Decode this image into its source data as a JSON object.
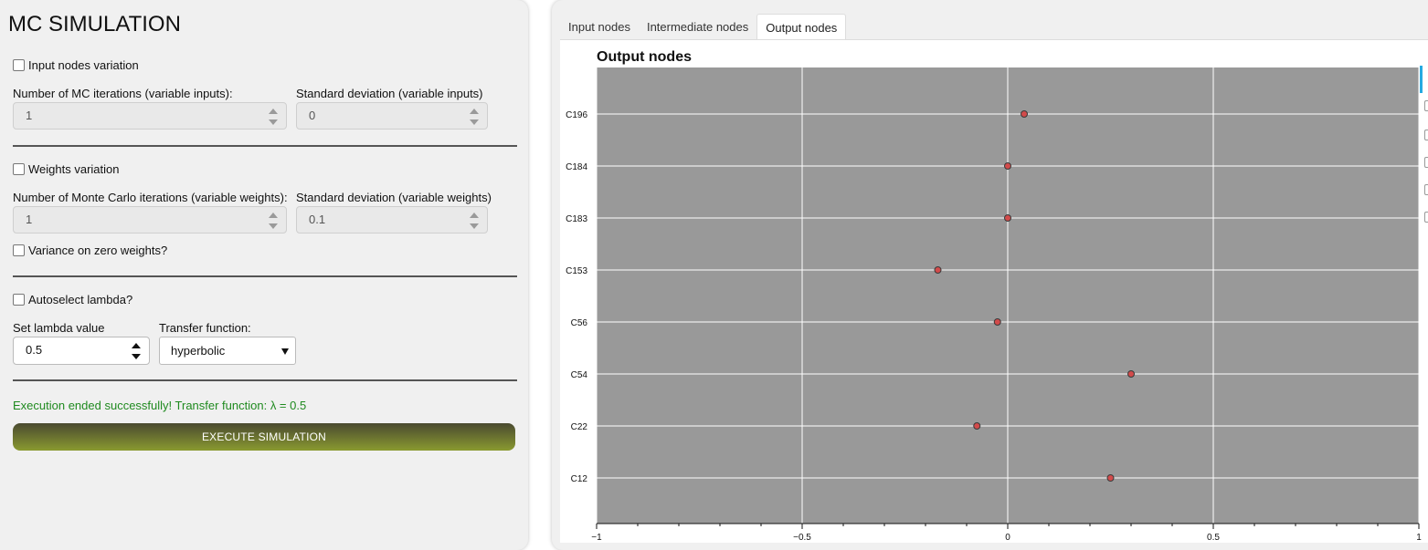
{
  "left_panel": {
    "title": "MC SIMULATION",
    "input_variation": {
      "checkbox_label": "Input nodes variation",
      "iterations_label": "Number of MC iterations (variable inputs):",
      "iterations_value": "1",
      "stddev_label": "Standard deviation (variable inputs)",
      "stddev_value": "0"
    },
    "weights_variation": {
      "checkbox_label": "Weights variation",
      "iterations_label": "Number of Monte Carlo iterations (variable weights):",
      "iterations_value": "1",
      "stddev_label": "Standard deviation (variable weights)",
      "stddev_value": "0.1",
      "zero_weights_label": "Variance on zero weights?"
    },
    "lambda": {
      "autoselect_label": "Autoselect lambda?",
      "set_label": "Set lambda value",
      "value": "0.5",
      "transfer_label": "Transfer function:",
      "transfer_value": "hyperbolic"
    },
    "status_text": "Execution ended successfully! Transfer function: λ = 0.5",
    "execute_label": "EXECUTE SIMULATION"
  },
  "tabs": [
    {
      "label": "Input nodes",
      "active": false
    },
    {
      "label": "Intermediate nodes",
      "active": false
    },
    {
      "label": "Output nodes",
      "active": true
    }
  ],
  "colors": {
    "plot_bg": "#999999",
    "point_fill": "#d24b4b",
    "point_stroke": "#3a3a3a",
    "grid": "#ffffff",
    "status_green": "#1f8a1f"
  },
  "chart_data": {
    "type": "scatter",
    "title": "Output nodes",
    "xlim": [
      -1,
      1
    ],
    "xticks": [
      -1,
      -0.5,
      0,
      0.5,
      1
    ],
    "xtick_labels": [
      "−1",
      "−0.5",
      "0",
      "0.5",
      "1"
    ],
    "categories": [
      "C196",
      "C184",
      "C183",
      "C153",
      "C56",
      "C54",
      "C22",
      "C12"
    ],
    "values": [
      0.04,
      0.0,
      0.0,
      -0.17,
      -0.025,
      0.3,
      -0.075,
      0.25
    ]
  }
}
